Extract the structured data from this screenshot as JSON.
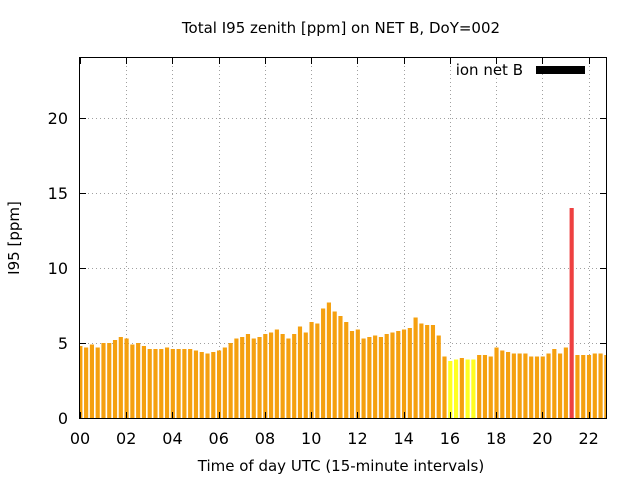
{
  "chart_data": {
    "type": "bar",
    "title": "Total I95 zenith [ppm] on NET B, DoY=002",
    "xlabel": "Time of day UTC (15-minute intervals)",
    "ylabel": "I95 [ppm]",
    "xlim": [
      0,
      22.75
    ],
    "ylim": [
      0,
      24
    ],
    "x_ticks": [
      "00",
      "02",
      "04",
      "06",
      "08",
      "10",
      "12",
      "14",
      "16",
      "18",
      "20",
      "22"
    ],
    "y_ticks": [
      "0",
      "5",
      "10",
      "15",
      "20"
    ],
    "grid": true,
    "legend": {
      "position": "top-right",
      "entries": [
        {
          "label": "ion net B",
          "color": "#000000"
        }
      ]
    },
    "bar_interval_hours": 0.25,
    "colors": {
      "normal": "#f5a00f",
      "low": "#ffff22",
      "high": "#ee4040"
    },
    "thresholds": {
      "low_below": 4.0,
      "high_above": 10.0
    },
    "values": [
      4.8,
      4.7,
      4.9,
      4.7,
      5.0,
      5.0,
      5.2,
      5.4,
      5.3,
      4.9,
      5.0,
      4.8,
      4.6,
      4.6,
      4.6,
      4.7,
      4.6,
      4.6,
      4.6,
      4.6,
      4.5,
      4.4,
      4.3,
      4.4,
      4.5,
      4.7,
      5.0,
      5.3,
      5.4,
      5.6,
      5.3,
      5.4,
      5.6,
      5.7,
      5.9,
      5.6,
      5.3,
      5.6,
      6.1,
      5.7,
      6.4,
      6.3,
      7.3,
      7.7,
      7.1,
      6.8,
      6.4,
      5.8,
      5.9,
      5.3,
      5.4,
      5.5,
      5.4,
      5.6,
      5.7,
      5.8,
      5.9,
      6.0,
      6.7,
      6.3,
      6.2,
      6.2,
      5.5,
      4.1,
      3.8,
      3.9,
      4.0,
      3.9,
      3.9,
      4.2,
      4.2,
      4.1,
      4.7,
      4.5,
      4.4,
      4.3,
      4.3,
      4.3,
      4.1,
      4.1,
      4.1,
      4.3,
      4.6,
      4.3,
      4.7,
      14.0,
      4.2,
      4.2,
      4.2,
      4.3,
      4.3,
      4.2
    ]
  }
}
